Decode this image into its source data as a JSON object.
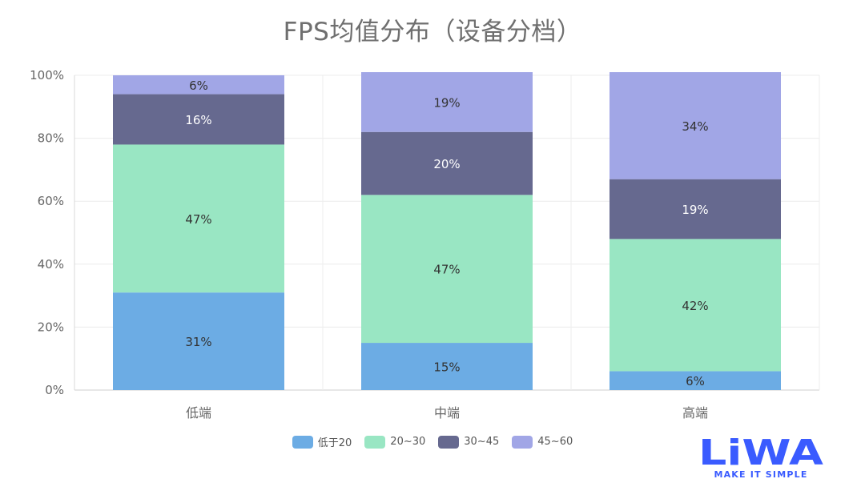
{
  "chart_data": {
    "type": "bar",
    "stacked": true,
    "title": "FPS均值分布（设备分档）",
    "categories": [
      "低端",
      "中端",
      "高端"
    ],
    "ylim": [
      0,
      100
    ],
    "ytick_values": [
      0,
      20,
      40,
      60,
      80,
      100
    ],
    "ytick_labels": [
      "0%",
      "20%",
      "40%",
      "60%",
      "80%",
      "100%"
    ],
    "grid": true,
    "legend_position": "bottom-center",
    "series": [
      {
        "name": "低于20",
        "color": "#6cace4",
        "values": [
          31,
          15,
          6
        ]
      },
      {
        "name": "20~30",
        "color": "#99e6c3",
        "values": [
          47,
          47,
          42
        ]
      },
      {
        "name": "30~45",
        "color": "#66698f",
        "values": [
          16,
          20,
          19
        ]
      },
      {
        "name": "45~60",
        "color": "#a1a6e6",
        "values": [
          6,
          19,
          34
        ]
      }
    ],
    "data_labels": [
      [
        "31%",
        "15%",
        "6%"
      ],
      [
        "47%",
        "47%",
        "42%"
      ],
      [
        "16%",
        "20%",
        "19%"
      ],
      [
        "6%",
        "19%",
        "34%"
      ]
    ]
  },
  "logo": {
    "text": "LiWA",
    "tagline": "MAKE IT SIMPLE",
    "color": "#3a5bff"
  }
}
